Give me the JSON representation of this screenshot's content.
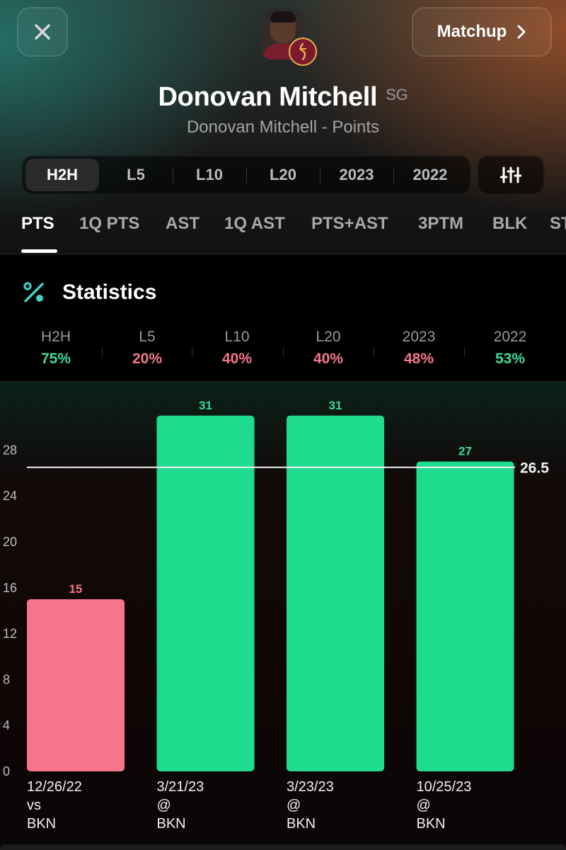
{
  "header": {
    "matchup_label": "Matchup",
    "player_name": "Donovan Mitchell",
    "position": "SG",
    "subtitle": "Donovan Mitchell - Points"
  },
  "range_tabs": [
    "H2H",
    "L5",
    "L10",
    "L20",
    "2023",
    "2022"
  ],
  "active_range": "H2H",
  "stat_tabs": [
    "PTS",
    "1Q PTS",
    "AST",
    "1Q AST",
    "PTS+AST",
    "3PTM",
    "BLK",
    "ST"
  ],
  "active_stat": "PTS",
  "statistics": {
    "title": "Statistics",
    "hit_rates": [
      {
        "label": "H2H",
        "value": "75%",
        "status": "hit"
      },
      {
        "label": "L5",
        "value": "20%",
        "status": "miss"
      },
      {
        "label": "L10",
        "value": "40%",
        "status": "miss"
      },
      {
        "label": "L20",
        "value": "40%",
        "status": "miss"
      },
      {
        "label": "2023",
        "value": "48%",
        "status": "miss"
      },
      {
        "label": "2022",
        "value": "53%",
        "status": "hit"
      }
    ]
  },
  "colors": {
    "hit": "#1fdc8f",
    "miss": "#f7748a",
    "hit_text": "#3fd995",
    "miss_text": "#f2788b"
  },
  "chart_data": {
    "type": "bar",
    "categories": [
      [
        "12/26/22",
        "vs",
        "BKN"
      ],
      [
        "3/21/23",
        "@",
        "BKN"
      ],
      [
        "3/23/23",
        "@",
        "BKN"
      ],
      [
        "10/25/23",
        "@",
        "BKN"
      ]
    ],
    "values": [
      15,
      31,
      31,
      27
    ],
    "bar_status": [
      "miss",
      "hit",
      "hit",
      "hit"
    ],
    "line": 26.5,
    "yticks": [
      0,
      4,
      8,
      12,
      16,
      20,
      24,
      28
    ],
    "ylim": [
      0,
      33
    ]
  }
}
